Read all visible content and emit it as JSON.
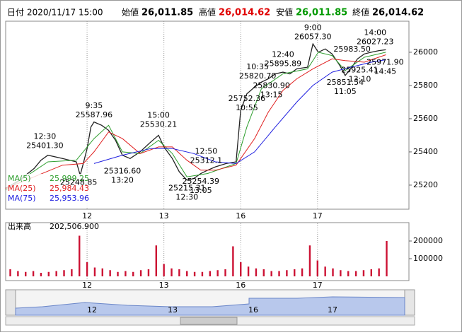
{
  "header": {
    "date_label": "日付",
    "date": "2020/11/17 15:00",
    "open_label": "始値",
    "open": "26,011.85",
    "high_label": "高値",
    "high": "26,014.62",
    "low_label": "安値",
    "low": "26,011.85",
    "close_label": "終値",
    "close": "26,014.62"
  },
  "chart_data": [
    {
      "type": "line",
      "xlim": [
        -1.06,
        4.19
      ],
      "ylim": [
        25055,
        26187
      ],
      "yticks": [
        25200,
        25400,
        25600,
        25800,
        26000
      ],
      "xticks": [
        {
          "value": 0,
          "label": "12"
        },
        {
          "value": 1,
          "label": "13"
        },
        {
          "value": 2,
          "label": "16"
        },
        {
          "value": 3,
          "label": "17"
        }
      ],
      "x": [
        -1.06,
        -0.88,
        -0.69,
        -0.6,
        -0.51,
        -0.32,
        -0.14,
        -0.09,
        -0.05,
        0,
        0.05,
        0.09,
        0.19,
        0.28,
        0.37,
        0.46,
        0.56,
        0.69,
        0.83,
        0.93,
        1.0,
        1.11,
        1.2,
        1.3,
        1.39,
        1.48,
        1.57,
        1.67,
        1.81,
        1.94,
        2.0,
        2.08,
        2.18,
        2.27,
        2.36,
        2.45,
        2.55,
        2.64,
        2.73,
        2.87,
        2.94,
        3.01,
        3.1,
        3.19,
        3.29,
        3.36,
        3.43,
        3.52,
        3.61,
        3.7,
        3.8,
        3.89
      ],
      "series": [
        {
          "color": "#222222",
          "values": [
            25180,
            25230,
            25300,
            25350,
            25380,
            25360,
            25340,
            25260,
            25330,
            25420,
            25550,
            25580,
            25560,
            25530,
            25470,
            25380,
            25360,
            25400,
            25460,
            25500,
            25430,
            25360,
            25280,
            25230,
            25240,
            25270,
            25290,
            25310,
            25330,
            25340,
            25650,
            25750,
            25790,
            25820,
            25840,
            25870,
            25880,
            25870,
            25900,
            25910,
            26050,
            26000,
            26020,
            25990,
            25920,
            25860,
            25900,
            25960,
            25990,
            26000,
            26010,
            26015
          ]
        },
        {
          "name": "MA(5)",
          "color": "#2e9e2e",
          "value_label": "25,999.25",
          "x": [
            -1.06,
            -0.51,
            -0.14,
            0.09,
            0.28,
            0.46,
            0.69,
            0.93,
            1.11,
            1.3,
            1.57,
            1.94,
            2.08,
            2.27,
            2.55,
            2.87,
            3.01,
            3.19,
            3.36,
            3.61,
            3.89
          ],
          "values": [
            25170,
            25340,
            25350,
            25480,
            25560,
            25400,
            25390,
            25470,
            25390,
            25250,
            25270,
            25330,
            25550,
            25780,
            25870,
            25900,
            26000,
            25980,
            25890,
            25970,
            26000
          ]
        },
        {
          "name": "MA(25)",
          "color": "#e02020",
          "value_label": "25,984.43",
          "x": [
            -1.06,
            -0.69,
            -0.32,
            -0.05,
            0.09,
            0.28,
            0.46,
            0.69,
            0.93,
            1.11,
            1.3,
            1.48,
            1.67,
            1.94,
            2.18,
            2.36,
            2.55,
            2.73,
            2.94,
            3.19,
            3.36,
            3.61,
            3.89
          ],
          "values": [
            25180,
            25250,
            25320,
            25330,
            25400,
            25520,
            25480,
            25390,
            25430,
            25430,
            25350,
            25290,
            25290,
            25320,
            25480,
            25640,
            25770,
            25840,
            25900,
            25960,
            25950,
            25940,
            25985
          ]
        },
        {
          "name": "MA(75)",
          "color": "#2020e0",
          "value_label": "25,953.96",
          "x": [
            0.09,
            0.46,
            0.83,
            1.11,
            1.39,
            1.67,
            1.94,
            2.18,
            2.45,
            2.73,
            2.94,
            3.19,
            3.43,
            3.7,
            3.89
          ],
          "values": [
            25330,
            25380,
            25420,
            25420,
            25390,
            25340,
            25330,
            25400,
            25550,
            25700,
            25800,
            25880,
            25910,
            25940,
            25955
          ]
        }
      ],
      "annotations": [
        {
          "lines": [
            "12:30",
            "25401.30"
          ],
          "x": -0.55,
          "y": 25401.3,
          "pos": "above"
        },
        {
          "lines": [
            "25248.85"
          ],
          "x": -0.11,
          "y": 25248.85,
          "pos": "below"
        },
        {
          "lines": [
            "9:35",
            "25587.96"
          ],
          "x": 0.09,
          "y": 25587.96,
          "pos": "above"
        },
        {
          "lines": [
            "25316.60",
            "13:20"
          ],
          "x": 0.46,
          "y": 25316.6,
          "pos": "below"
        },
        {
          "lines": [
            "15:00",
            "25530.21"
          ],
          "x": 0.93,
          "y": 25530.21,
          "pos": "above"
        },
        {
          "lines": [
            "12:50",
            "25312.1"
          ],
          "x": 1.55,
          "y": 25312.1,
          "pos": "above"
        },
        {
          "lines": [
            "25254.39",
            "13:05"
          ],
          "x": 1.48,
          "y": 25254.39,
          "pos": "below"
        },
        {
          "lines": [
            "25215.31",
            "12:30"
          ],
          "x": 1.3,
          "y": 25215.31,
          "pos": "below"
        },
        {
          "lines": [
            "25752.36",
            "10:55"
          ],
          "x": 2.08,
          "y": 25752.36,
          "pos": "below"
        },
        {
          "lines": [
            "10:35",
            "25820.70"
          ],
          "x": 2.22,
          "y": 25820.7,
          "pos": "above"
        },
        {
          "lines": [
            "25830.90",
            "13:15"
          ],
          "x": 2.4,
          "y": 25830.9,
          "pos": "below"
        },
        {
          "lines": [
            "12:40",
            "25895.89"
          ],
          "x": 2.55,
          "y": 25895.89,
          "pos": "above"
        },
        {
          "lines": [
            "9:00",
            "26057.30"
          ],
          "x": 2.94,
          "y": 26057.3,
          "pos": "above"
        },
        {
          "lines": [
            "25851.54",
            "11:05"
          ],
          "x": 3.36,
          "y": 25851.54,
          "pos": "below"
        },
        {
          "lines": [
            "25925.41",
            "13:10"
          ],
          "x": 3.55,
          "y": 25925.41,
          "pos": "below"
        },
        {
          "lines": [
            "25983.50"
          ],
          "x": 3.45,
          "y": 25983.5,
          "pos": "above"
        },
        {
          "lines": [
            "14:00",
            "26027.23"
          ],
          "x": 3.75,
          "y": 26027.23,
          "pos": "above"
        },
        {
          "lines": [
            "25971.90",
            "14:45"
          ],
          "x": 3.88,
          "y": 25971.9,
          "pos": "below"
        }
      ]
    },
    {
      "type": "bar",
      "title": "出来高",
      "title_value": "202,506.900",
      "color": "#cc1133",
      "xlim": [
        -1.06,
        4.19
      ],
      "ylim": [
        0,
        300000
      ],
      "yticks": [
        100000,
        200000
      ],
      "xticks": [
        {
          "value": 0,
          "label": "12"
        },
        {
          "value": 1,
          "label": "13"
        },
        {
          "value": 2,
          "label": "16"
        },
        {
          "value": 3,
          "label": "17"
        }
      ],
      "x": [
        -1.0,
        -0.9,
        -0.8,
        -0.7,
        -0.6,
        -0.5,
        -0.4,
        -0.3,
        -0.2,
        -0.1,
        0.0,
        0.1,
        0.2,
        0.3,
        0.4,
        0.5,
        0.6,
        0.7,
        0.8,
        0.9,
        1.0,
        1.1,
        1.2,
        1.3,
        1.4,
        1.5,
        1.6,
        1.7,
        1.8,
        1.9,
        2.0,
        2.1,
        2.2,
        2.3,
        2.4,
        2.5,
        2.6,
        2.7,
        2.8,
        2.9,
        3.0,
        3.1,
        3.2,
        3.3,
        3.4,
        3.5,
        3.6,
        3.7,
        3.8,
        3.9
      ],
      "values": [
        40000,
        30000,
        25000,
        30000,
        20000,
        25000,
        30000,
        35000,
        40000,
        230000,
        80000,
        50000,
        45000,
        35000,
        25000,
        30000,
        25000,
        35000,
        40000,
        175000,
        70000,
        45000,
        40000,
        30000,
        25000,
        25000,
        30000,
        35000,
        40000,
        170000,
        80000,
        55000,
        45000,
        40000,
        30000,
        30000,
        35000,
        40000,
        45000,
        175000,
        90000,
        55000,
        45000,
        35000,
        30000,
        30000,
        35000,
        40000,
        45000,
        200000
      ]
    }
  ]
}
